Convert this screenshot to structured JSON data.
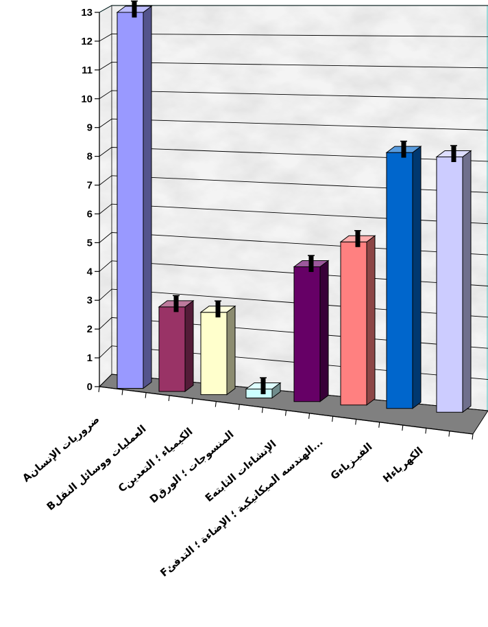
{
  "chart_data": {
    "type": "bar",
    "style": "3d-column",
    "title": "",
    "xlabel": "",
    "ylabel": "",
    "ylim": [
      0,
      13
    ],
    "yticks": [
      0,
      1,
      2,
      3,
      4,
      5,
      6,
      7,
      8,
      9,
      10,
      11,
      12,
      13
    ],
    "grid": true,
    "legend": "none",
    "error_bars": true,
    "categories": [
      "Aضروريات الإنسان",
      "Bالعمليات ووسائل النقل",
      "Cالكيمياء ؛ التعدين",
      "Dالمنسوجات ؛ الورق",
      "Eالإنشاءات الثابته",
      "Fالهندسه الميكانيكية ؛ الإضاءة ؛ التدفئ...",
      "Gالفيـزياء",
      "Hالكهرباء"
    ],
    "values": [
      13,
      2.9,
      2.8,
      0.3,
      4.5,
      5.4,
      8.4,
      8.3
    ],
    "colors": [
      "#9999ff",
      "#993366",
      "#ffffcc",
      "#ccffff",
      "#660066",
      "#ff8080",
      "#0066cc",
      "#ccccff"
    ]
  }
}
